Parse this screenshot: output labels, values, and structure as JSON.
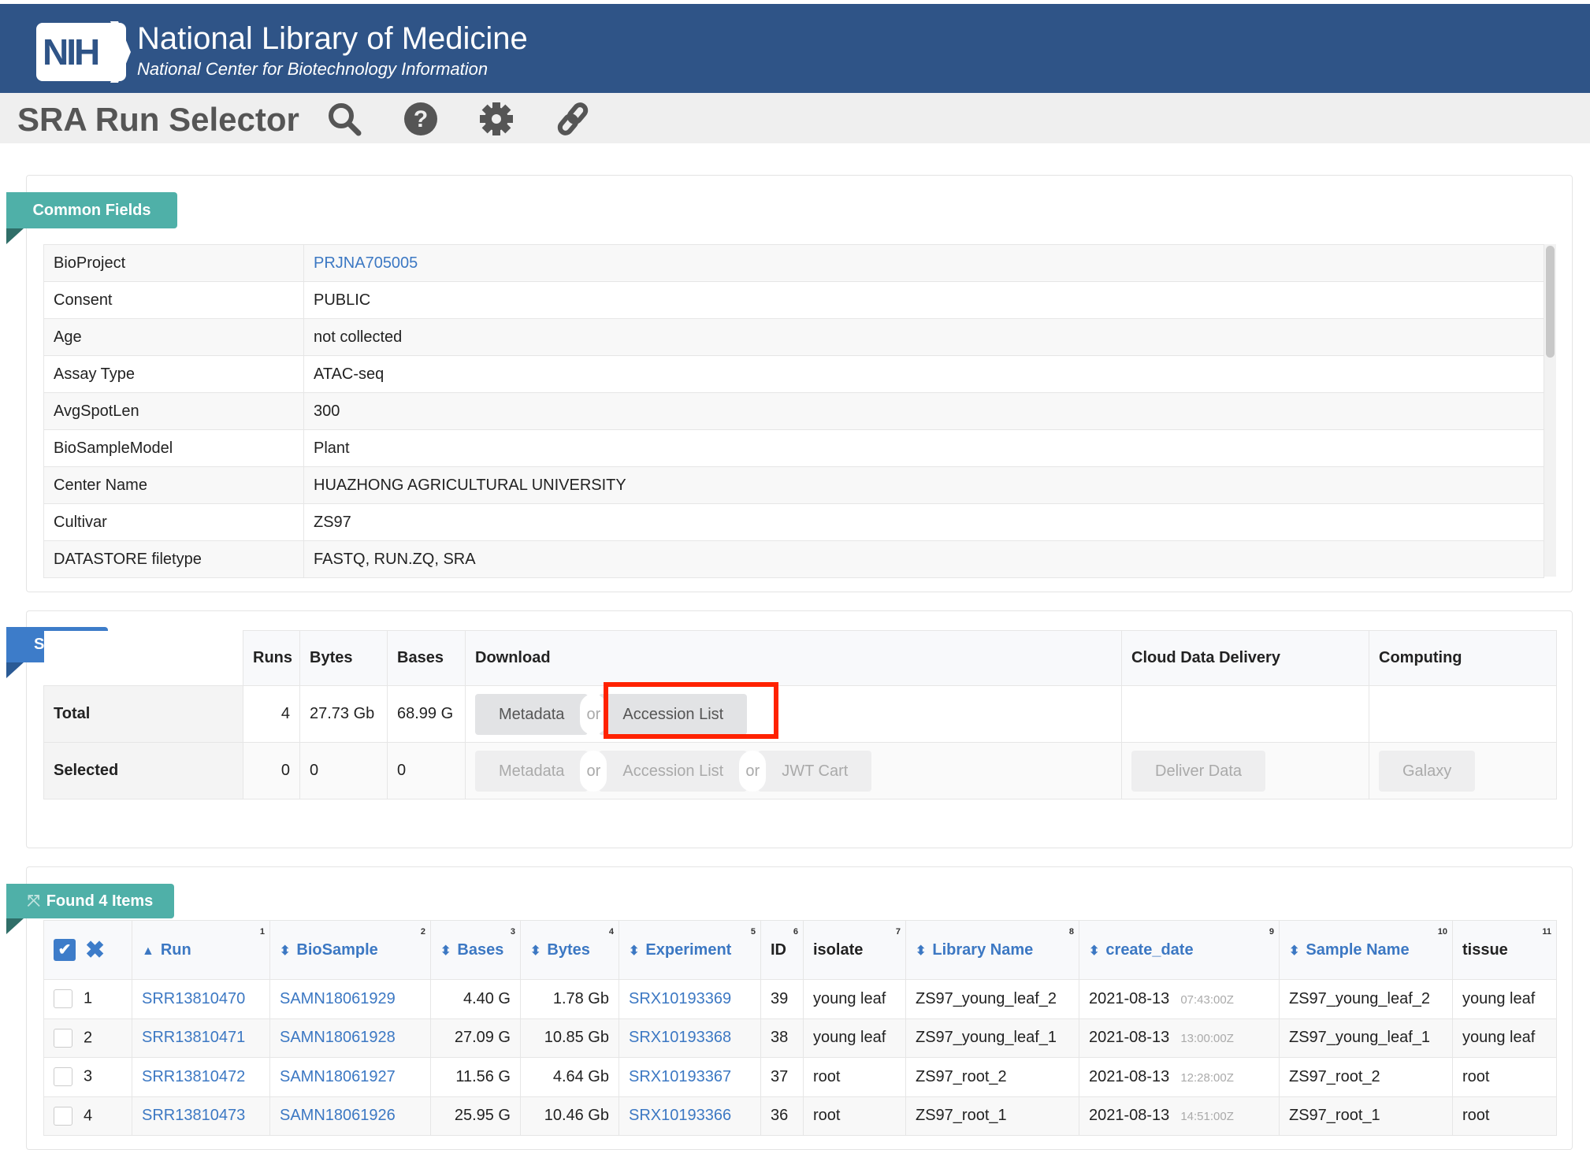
{
  "header": {
    "logo": "NIH",
    "title": "National Library of Medicine",
    "subtitle": "National Center for Biotechnology Information",
    "brand_color": "#2f5487"
  },
  "toolbar": {
    "title": "SRA Run Selector",
    "icons": [
      "search-icon",
      "help-icon",
      "gear-icon",
      "link-icon"
    ]
  },
  "common_fields": {
    "tab": "Common Fields",
    "rows": [
      {
        "label": "BioProject",
        "value": "PRJNA705005",
        "link": true
      },
      {
        "label": "Consent",
        "value": "PUBLIC"
      },
      {
        "label": "Age",
        "value": "not collected"
      },
      {
        "label": "Assay Type",
        "value": "ATAC-seq"
      },
      {
        "label": "AvgSpotLen",
        "value": "300"
      },
      {
        "label": "BioSampleModel",
        "value": "Plant"
      },
      {
        "label": "Center Name",
        "value": "HUAZHONG AGRICULTURAL UNIVERSITY"
      },
      {
        "label": "Cultivar",
        "value": "ZS97"
      },
      {
        "label": "DATASTORE filetype",
        "value": "FASTQ, RUN.ZQ, SRA"
      }
    ]
  },
  "select": {
    "tab": "Select",
    "headers": {
      "runs": "Runs",
      "bytes": "Bytes",
      "bases": "Bases",
      "download": "Download",
      "cloud": "Cloud Data Delivery",
      "computing": "Computing"
    },
    "total": {
      "label": "Total",
      "runs": "4",
      "bytes": "27.73 Gb",
      "bases": "68.99 G",
      "metadata": "Metadata",
      "or": "or",
      "accession": "Accession List"
    },
    "selected": {
      "label": "Selected",
      "runs": "0",
      "bytes": "0",
      "bases": "0",
      "metadata": "Metadata",
      "or": "or",
      "accession": "Accession List",
      "jwt": "JWT Cart",
      "deliver": "Deliver Data",
      "galaxy": "Galaxy"
    }
  },
  "found": {
    "tab": "Found 4 Items",
    "columns": [
      {
        "label": "Run",
        "n": "1",
        "sort": "▲",
        "link": true
      },
      {
        "label": "BioSample",
        "n": "2",
        "sort": "⬍",
        "link": true
      },
      {
        "label": "Bases",
        "n": "3",
        "sort": "⬍",
        "link": true
      },
      {
        "label": "Bytes",
        "n": "4",
        "sort": "⬍",
        "link": true
      },
      {
        "label": "Experiment",
        "n": "5",
        "sort": "⬍",
        "link": true
      },
      {
        "label": "ID",
        "n": "6"
      },
      {
        "label": "isolate",
        "n": "7"
      },
      {
        "label": "Library Name",
        "n": "8",
        "sort": "⬍",
        "link": true
      },
      {
        "label": "create_date",
        "n": "9",
        "sort": "⬍",
        "link": true
      },
      {
        "label": "Sample Name",
        "n": "10",
        "sort": "⬍",
        "link": true
      },
      {
        "label": "tissue",
        "n": "11"
      }
    ],
    "rows": [
      {
        "n": "1",
        "run": "SRR13810470",
        "biosample": "SAMN18061929",
        "bases": "4.40 G",
        "bytes": "1.78 Gb",
        "experiment": "SRX10193369",
        "id": "39",
        "isolate": "young leaf",
        "library": "ZS97_young_leaf_2",
        "date": "2021-08-13",
        "time": "07:43:00Z",
        "sample": "ZS97_young_leaf_2",
        "tissue": "young leaf"
      },
      {
        "n": "2",
        "run": "SRR13810471",
        "biosample": "SAMN18061928",
        "bases": "27.09 G",
        "bytes": "10.85 Gb",
        "experiment": "SRX10193368",
        "id": "38",
        "isolate": "young leaf",
        "library": "ZS97_young_leaf_1",
        "date": "2021-08-13",
        "time": "13:00:00Z",
        "sample": "ZS97_young_leaf_1",
        "tissue": "young leaf"
      },
      {
        "n": "3",
        "run": "SRR13810472",
        "biosample": "SAMN18061927",
        "bases": "11.56 G",
        "bytes": "4.64 Gb",
        "experiment": "SRX10193367",
        "id": "37",
        "isolate": "root",
        "library": "ZS97_root_2",
        "date": "2021-08-13",
        "time": "12:28:00Z",
        "sample": "ZS97_root_2",
        "tissue": "root"
      },
      {
        "n": "4",
        "run": "SRR13810473",
        "biosample": "SAMN18061926",
        "bases": "25.95 G",
        "bytes": "10.46 Gb",
        "experiment": "SRX10193366",
        "id": "36",
        "isolate": "root",
        "library": "ZS97_root_1",
        "date": "2021-08-13",
        "time": "14:51:00Z",
        "sample": "ZS97_root_1",
        "tissue": "root"
      }
    ]
  },
  "colors": {
    "teal_tab": "#4fb0a8",
    "blue_tab": "#3d7cc9",
    "link": "#3c78c3",
    "highlight": "#ff2200"
  }
}
